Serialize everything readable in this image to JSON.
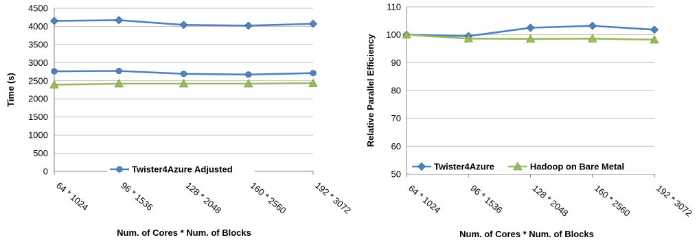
{
  "chart_data": [
    {
      "type": "line",
      "title": "",
      "xlabel": "Num. of Cores * Num. of Blocks",
      "ylabel": "Time (s)",
      "ylim": [
        0,
        4500
      ],
      "yticks": [
        0,
        500,
        1000,
        1500,
        2000,
        2500,
        3000,
        3500,
        4000,
        4500
      ],
      "categories": [
        "64 * 1024",
        "96 * 1536",
        "128 * 2048",
        "160 * 2560",
        "192 * 3072"
      ],
      "grid": true,
      "legend_position": "bottom",
      "series": [
        {
          "name": "",
          "color": "#4f81bd",
          "marker": "diamond",
          "values": [
            4150,
            4170,
            4040,
            4020,
            4070
          ]
        },
        {
          "name": "Twister4Azure Adjusted",
          "color": "#4f81bd",
          "marker": "circle",
          "values": [
            2760,
            2770,
            2690,
            2670,
            2710
          ]
        },
        {
          "name": "",
          "color": "#9bbb59",
          "marker": "triangle",
          "values": [
            2390,
            2420,
            2420,
            2420,
            2430
          ]
        }
      ]
    },
    {
      "type": "line",
      "title": "",
      "xlabel": "Num. of Cores * Num. of Blocks",
      "ylabel": "Relative Parallel Efficiency",
      "ylim": [
        50,
        110
      ],
      "yticks": [
        50,
        60,
        70,
        80,
        90,
        100,
        110
      ],
      "categories": [
        "64 * 1024",
        "96 * 1536",
        "128 * 2048",
        "160 * 2560",
        "192 * 3072"
      ],
      "grid": true,
      "legend_position": "bottom",
      "series": [
        {
          "name": "Twister4Azure",
          "color": "#4f81bd",
          "marker": "diamond",
          "values": [
            100,
            99.5,
            102.5,
            103.2,
            101.8
          ]
        },
        {
          "name": "Hadoop on Bare Metal",
          "color": "#9bbb59",
          "marker": "triangle",
          "values": [
            100,
            98.6,
            98.5,
            98.6,
            98.2
          ]
        }
      ]
    }
  ]
}
